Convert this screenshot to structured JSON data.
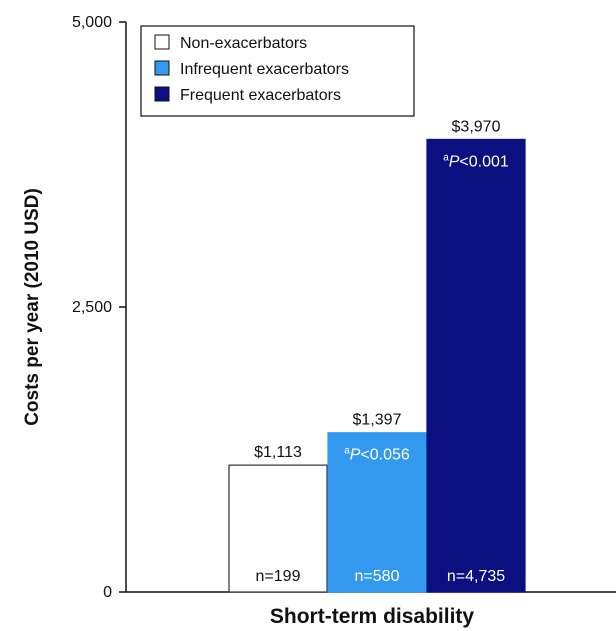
{
  "chart_data": {
    "type": "bar",
    "xlabel": "Short-term disability",
    "ylabel": "Costs per year (2010 USD)",
    "ylim": [
      0,
      5000
    ],
    "yticks": [
      0,
      2500,
      5000
    ],
    "ytick_labels": [
      "0",
      "2,500",
      "5,000"
    ],
    "legend_position": "top-left",
    "series": [
      {
        "name": "Non-exacerbators",
        "value": 1113,
        "value_label": "$1,113",
        "n_label": "n=199",
        "p_sup": "",
        "p_text": "",
        "p_rest": "",
        "color": "#ffffff",
        "border": "#333333",
        "text_color": "#111111"
      },
      {
        "name": "Infrequent exacerbators",
        "value": 1397,
        "value_label": "$1,397",
        "n_label": "n=580",
        "p_sup": "a",
        "p_text": "P",
        "p_rest": "<0.056",
        "color": "#3399ee",
        "border": "#3399ee",
        "text_color": "#ffffff"
      },
      {
        "name": "Frequent exacerbators",
        "value": 3970,
        "value_label": "$3,970",
        "n_label": "n=4,735",
        "p_sup": "a",
        "p_text": "P",
        "p_rest": "<0.001",
        "color": "#0b0f80",
        "border": "#0b0f80",
        "text_color": "#ffffff"
      }
    ]
  }
}
